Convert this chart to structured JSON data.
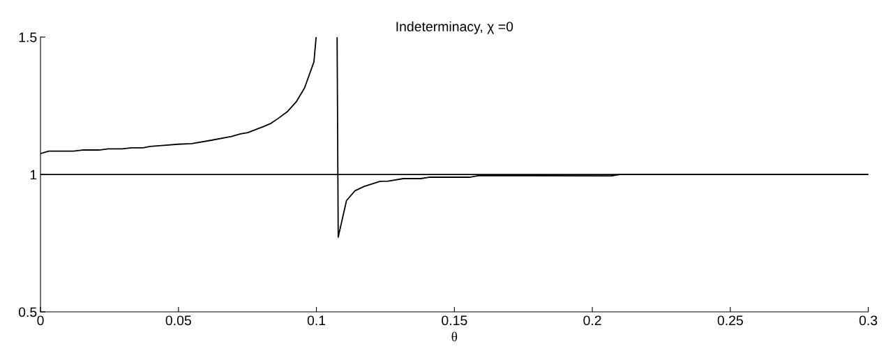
{
  "chart_data": {
    "type": "line",
    "title": "Indeterminacy, χ =0",
    "xlabel": "θ",
    "xlim": [
      0,
      0.3
    ],
    "ylim": [
      0.5,
      1.5
    ],
    "xticks": [
      0,
      0.05,
      0.1,
      0.15,
      0.2,
      0.25,
      0.3
    ],
    "yticks": [
      0.5,
      1,
      1.5
    ],
    "grid": false,
    "marker": "none",
    "line_style": "solid",
    "ref_lines": [
      {
        "axis": "y",
        "value": 1,
        "color": "#000000"
      }
    ],
    "series": [
      {
        "color": "#000000",
        "x": [
          0,
          0.003,
          0.0119,
          0.0152,
          0.0212,
          0.0245,
          0.0296,
          0.0329,
          0.0372,
          0.0397,
          0.0447,
          0.0498,
          0.0548,
          0.0616,
          0.0692,
          0.0725,
          0.0751,
          0.081,
          0.0835,
          0.086,
          0.0894,
          0.0928,
          0.0957,
          0.0991,
          0.0999,
          0.1037,
          0.1075,
          0.1079,
          0.1109,
          0.114,
          0.1172,
          0.1231,
          0.126,
          0.1315,
          0.1378,
          0.1408,
          0.1555,
          0.1589,
          0.2069,
          0.21,
          0.3
        ],
        "values": [
          1.076,
          1.085,
          1.085,
          1.089,
          1.089,
          1.093,
          1.093,
          1.097,
          1.097,
          1.102,
          1.106,
          1.11,
          1.112,
          1.124,
          1.138,
          1.148,
          1.152,
          1.175,
          1.186,
          1.203,
          1.228,
          1.266,
          1.315,
          1.41,
          1.5,
          null,
          1.5,
          0.772,
          0.905,
          0.941,
          0.956,
          0.975,
          0.976,
          0.985,
          0.985,
          0.99,
          0.99,
          0.996,
          0.995,
          1.0,
          1.0
        ]
      }
    ]
  }
}
